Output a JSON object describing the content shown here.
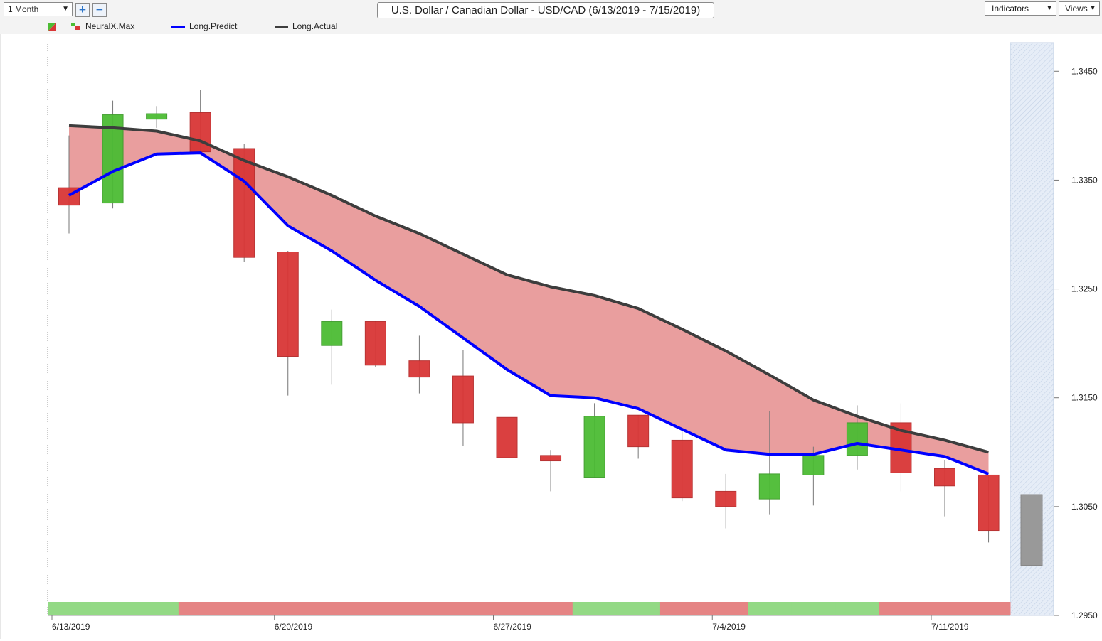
{
  "toolbar": {
    "period": "1 Month",
    "zoom_in": "+",
    "zoom_out": "−",
    "title": "U.S. Dollar / Canadian Dollar - USD/CAD (6/13/2019 - 7/15/2019)",
    "indicators_label": "Indicators",
    "views_label": "Views"
  },
  "legend": {
    "items": [
      {
        "label": "NeuralX.Max",
        "icon": "up-down-bar-icon"
      },
      {
        "label": "Long.Predict",
        "color": "#0000ff"
      },
      {
        "label": "Long.Actual",
        "color": "#3d3d3d"
      }
    ]
  },
  "chart_data": {
    "type": "candlestick",
    "x_ticks": [
      "6/13/2019",
      "6/20/2019",
      "6/27/2019",
      "7/4/2019",
      "7/11/2019"
    ],
    "y_ticks": [
      "1.3450",
      "1.3350",
      "1.3250",
      "1.3150",
      "1.3050",
      "1.2950"
    ],
    "ylim": [
      1.295,
      1.3475
    ],
    "colors": {
      "up": "#4cbc34",
      "down": "#d93636",
      "band": "#e89999",
      "predict": "#0000ff",
      "actual": "#3d3d3d",
      "signal_up": "#93d985",
      "signal_down": "#e58484",
      "projection": "#999999"
    },
    "candles": [
      {
        "o": 1.3343,
        "h": 1.3391,
        "l": 1.3301,
        "c": 1.3327
      },
      {
        "o": 1.3329,
        "h": 1.3423,
        "l": 1.3324,
        "c": 1.341
      },
      {
        "o": 1.3406,
        "h": 1.3418,
        "l": 1.3398,
        "c": 1.3411
      },
      {
        "o": 1.3412,
        "h": 1.3433,
        "l": 1.3376,
        "c": 1.3376
      },
      {
        "o": 1.3379,
        "h": 1.3383,
        "l": 1.3275,
        "c": 1.3279
      },
      {
        "o": 1.3284,
        "h": 1.3285,
        "l": 1.3152,
        "c": 1.3188
      },
      {
        "o": 1.3198,
        "h": 1.3231,
        "l": 1.3162,
        "c": 1.322
      },
      {
        "o": 1.322,
        "h": 1.3221,
        "l": 1.3178,
        "c": 1.318
      },
      {
        "o": 1.3184,
        "h": 1.3207,
        "l": 1.3154,
        "c": 1.3169
      },
      {
        "o": 1.317,
        "h": 1.3194,
        "l": 1.3106,
        "c": 1.3127
      },
      {
        "o": 1.3132,
        "h": 1.3137,
        "l": 1.3091,
        "c": 1.3095
      },
      {
        "o": 1.3097,
        "h": 1.3102,
        "l": 1.3064,
        "c": 1.3092
      },
      {
        "o": 1.3077,
        "h": 1.3145,
        "l": 1.3077,
        "c": 1.3133
      },
      {
        "o": 1.3134,
        "h": 1.3134,
        "l": 1.3094,
        "c": 1.3105
      },
      {
        "o": 1.3111,
        "h": 1.312,
        "l": 1.3055,
        "c": 1.3058
      },
      {
        "o": 1.3064,
        "h": 1.308,
        "l": 1.303,
        "c": 1.305
      },
      {
        "o": 1.3057,
        "h": 1.3138,
        "l": 1.3043,
        "c": 1.308
      },
      {
        "o": 1.3079,
        "h": 1.3105,
        "l": 1.3051,
        "c": 1.3097
      },
      {
        "o": 1.3097,
        "h": 1.3143,
        "l": 1.3084,
        "c": 1.3127
      },
      {
        "o": 1.3127,
        "h": 1.3145,
        "l": 1.3064,
        "c": 1.3081
      },
      {
        "o": 1.3085,
        "h": 1.3093,
        "l": 1.3041,
        "c": 1.3069
      },
      {
        "o": 1.3079,
        "h": 1.3079,
        "l": 1.3017,
        "c": 1.3028
      }
    ],
    "projection": {
      "open": 1.3061,
      "close": 1.2996
    },
    "long_predict": [
      1.3336,
      1.3358,
      1.3374,
      1.3375,
      1.3349,
      1.3308,
      1.3285,
      1.3258,
      1.3234,
      1.3205,
      1.3176,
      1.3152,
      1.315,
      1.314,
      1.3121,
      1.3102,
      1.3098,
      1.3098,
      1.3108,
      1.3102,
      1.3096,
      1.308
    ],
    "long_actual": [
      1.34,
      1.3398,
      1.3395,
      1.3386,
      1.3368,
      1.3353,
      1.3336,
      1.3317,
      1.3301,
      1.3282,
      1.3263,
      1.3252,
      1.3244,
      1.3232,
      1.3213,
      1.3193,
      1.3171,
      1.3148,
      1.3133,
      1.312,
      1.3111,
      1.31
    ],
    "signal_bar": [
      "up",
      "up",
      "up",
      "down",
      "down",
      "down",
      "down",
      "down",
      "down",
      "down",
      "down",
      "down",
      "up",
      "up",
      "down",
      "down",
      "up",
      "up",
      "up",
      "down",
      "down",
      "down"
    ]
  }
}
